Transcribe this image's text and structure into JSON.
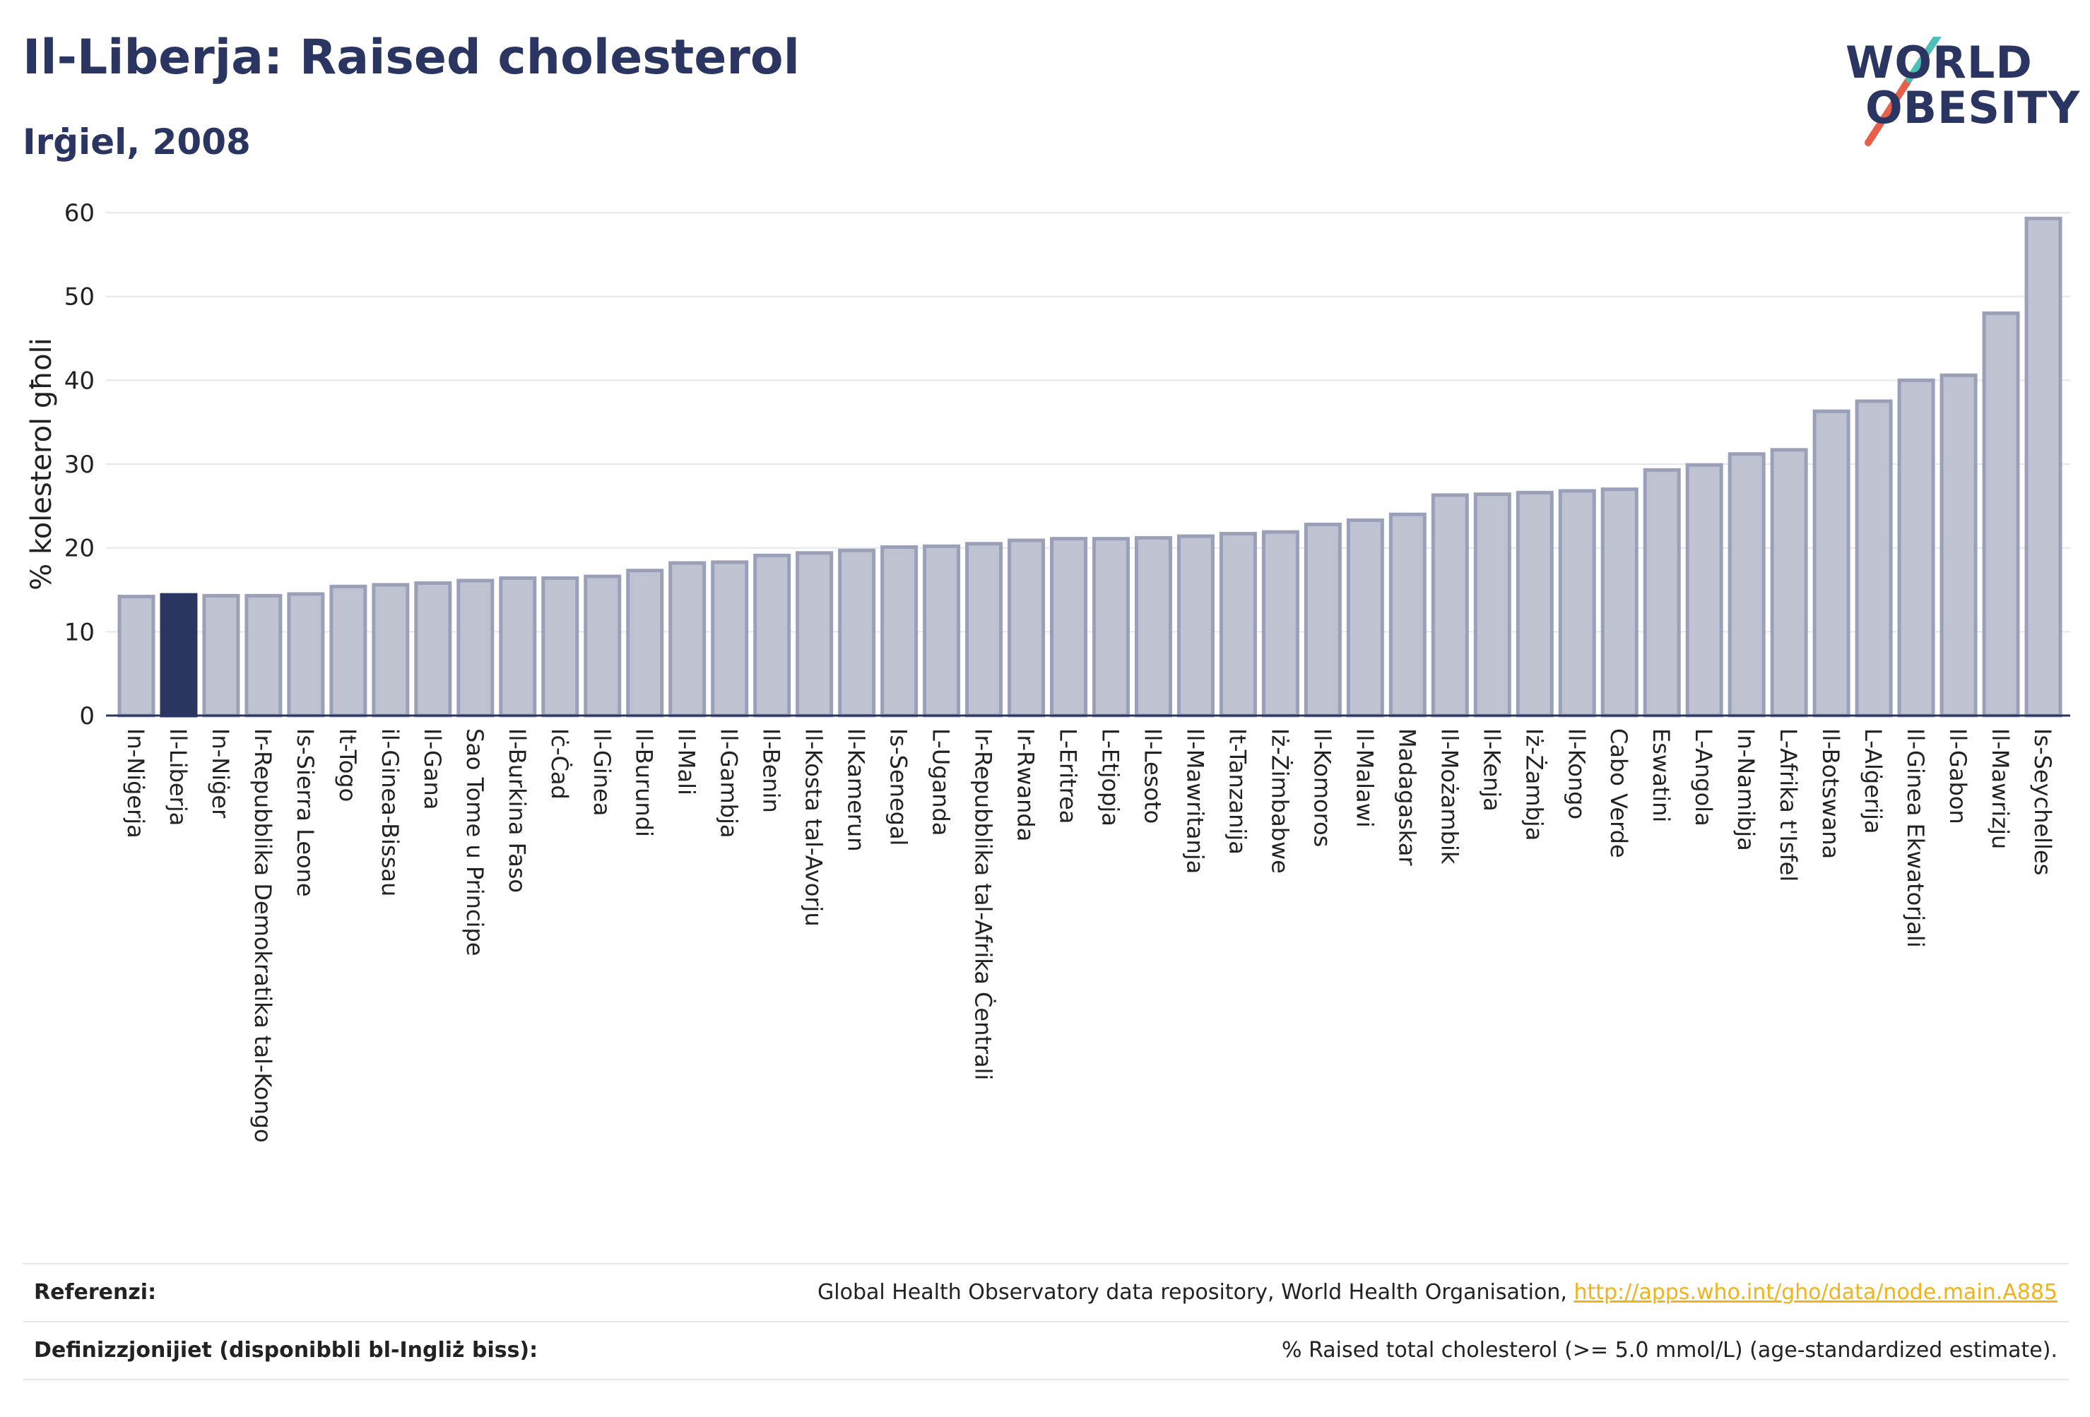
{
  "header": {
    "title": "Il-Liberja: Raised cholesterol",
    "subtitle": "Irġiel, 2008"
  },
  "logo": {
    "line1": "WORLD",
    "line2": "OBESITY"
  },
  "colors": {
    "highlight": "#2b3561",
    "bar_fill": "#bfc3d1",
    "bar_stroke": "#9aa0b8",
    "logo_slash_red": "#e8604c",
    "logo_slash_teal": "#4dbfb8",
    "link": "#f2b21b"
  },
  "chart_data": {
    "type": "bar",
    "ylabel": "% kolesterol għoli",
    "ylim": [
      0,
      60
    ],
    "yticks": [
      0,
      10,
      20,
      30,
      40,
      50,
      60
    ],
    "grid": true,
    "highlight_category": "Il-Liberja",
    "categories": [
      "In-Niġerja",
      "Il-Liberja",
      "In-Niġer",
      "Ir-Repubblika Demokratika tal-Kongo",
      "Is-Sierra Leone",
      "It-Togo",
      "il-Ginea-Bissau",
      "Il-Gana",
      "Sao Tome u Principe",
      "Il-Burkina Faso",
      "Iċ-Ċad",
      "Il-Ginea",
      "Il-Burundi",
      "Il-Mali",
      "Il-Gambja",
      "Il-Benin",
      "Il-Kosta tal-Avorju",
      "Il-Kamerun",
      "Is-Senegal",
      "L-Uganda",
      "Ir-Repubblika tal-Afrika Ċentrali",
      "Ir-Rwanda",
      "L-Eritrea",
      "L-Etjopja",
      "Il-Lesoto",
      "Il-Mawritanja",
      "It-Tanzanija",
      "Iż-Żimbabwe",
      "Il-Komoros",
      "Il-Malawi",
      "Madagaskar",
      "Il-Możambik",
      "Il-Kenja",
      "Iż-Żambja",
      "Il-Kongo",
      "Cabo Verde",
      "Eswatini",
      "L-Angola",
      "In-Namibja",
      "L-Afrika t'Isfel",
      "Il-Botswana",
      "L-Alġerija",
      "Il-Ginea Ekwatorjali",
      "Il-Gabon",
      "Il-Mawrizju",
      "Is-Seychelles"
    ],
    "values": [
      14.2,
      14.4,
      14.3,
      14.3,
      14.5,
      15.4,
      15.6,
      15.8,
      16.1,
      16.4,
      16.4,
      16.6,
      17.3,
      18.2,
      18.3,
      19.1,
      19.4,
      19.7,
      20.1,
      20.2,
      20.5,
      20.9,
      21.1,
      21.1,
      21.2,
      21.4,
      21.7,
      21.9,
      22.8,
      23.3,
      24.0,
      26.3,
      26.4,
      26.6,
      26.8,
      27.0,
      29.3,
      29.9,
      31.2,
      31.7,
      36.3,
      37.5,
      40.0,
      40.6,
      48.0,
      59.3
    ]
  },
  "footer": {
    "references_label": "Referenzi:",
    "references_text": "Global Health Observatory data repository, World Health Organisation, ",
    "references_link": "http://apps.who.int/gho/data/node.main.A885",
    "definitions_label": "Definizzjonijiet (disponibbli bl-Ingliż biss):",
    "definitions_text": "% Raised total cholesterol (>= 5.0 mmol/L) (age-standardized estimate)."
  }
}
